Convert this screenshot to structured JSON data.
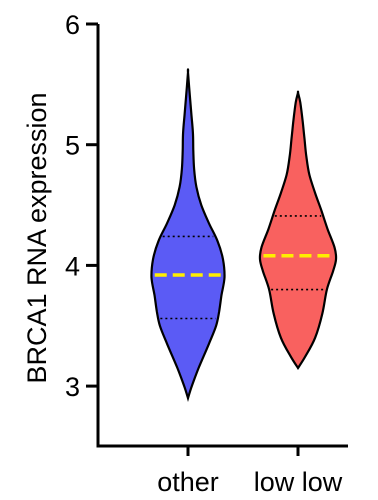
{
  "chart_data": {
    "type": "violin",
    "title": "",
    "xlabel": "",
    "ylabel": "BRCA1 RNA expression",
    "ylim": [
      2.5,
      6
    ],
    "yticks": [
      3,
      4,
      5,
      6
    ],
    "ytick_labels": [
      "3",
      "4",
      "5",
      "6"
    ],
    "categories": [
      "other",
      "low low"
    ],
    "series": [
      {
        "category": "other",
        "color": "#5b5bf5",
        "min": 2.9,
        "max": 5.6,
        "median": 3.92,
        "q1": 3.56,
        "q3": 4.24
      },
      {
        "category": "low low",
        "color": "#f9615f",
        "min": 3.15,
        "max": 5.43,
        "median": 4.08,
        "q1": 3.8,
        "q3": 4.41
      }
    ],
    "median_line_color": "#ffee00",
    "quartile_line_color": "#000000",
    "grid": false,
    "legend": "none"
  }
}
